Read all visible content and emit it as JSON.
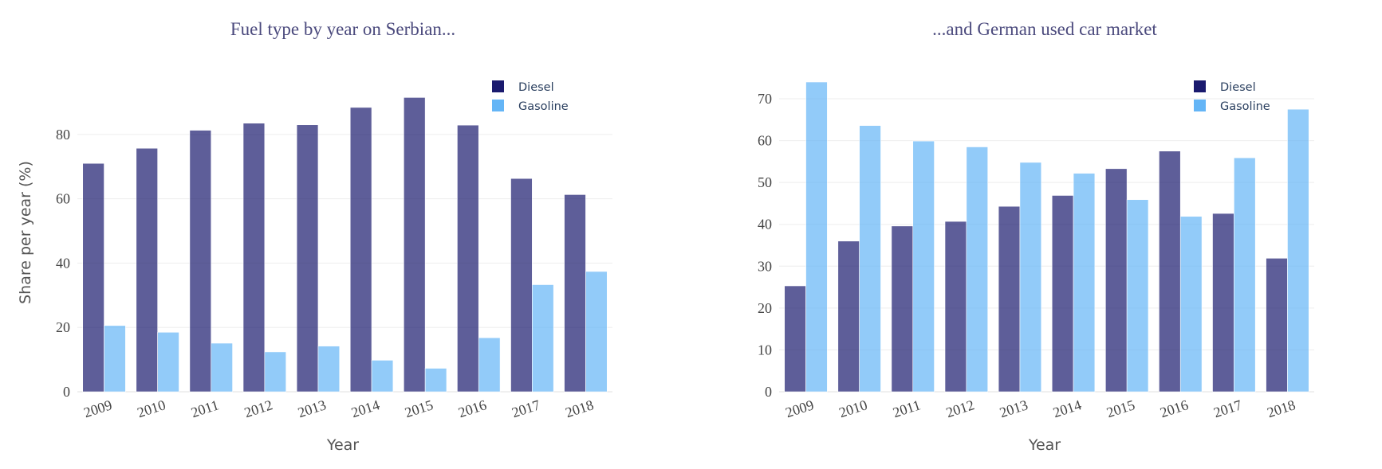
{
  "chart_data": [
    {
      "type": "bar",
      "title": "Fuel type by year on Serbian...",
      "xlabel": "Year",
      "ylabel": "Share per year (%)",
      "categories": [
        "2009",
        "2010",
        "2011",
        "2012",
        "2013",
        "2014",
        "2015",
        "2016",
        "2017",
        "2018"
      ],
      "series": [
        {
          "name": "Diesel",
          "color": "#1a1a6e",
          "values": [
            71,
            75.7,
            81.3,
            83.5,
            83,
            88.4,
            91.5,
            82.9,
            66.3,
            61.3
          ]
        },
        {
          "name": "Gasoline",
          "color": "#64b5f6",
          "values": [
            20.6,
            18.5,
            15.1,
            12.4,
            14.2,
            9.8,
            7.3,
            16.8,
            33.3,
            37.4
          ]
        }
      ],
      "yticks": [
        0,
        20,
        40,
        60,
        80
      ],
      "ylim": [
        0,
        96.3
      ],
      "grid": true,
      "legend_position": "top-right"
    },
    {
      "type": "bar",
      "title": "...and German used car market",
      "xlabel": "Year",
      "ylabel": "",
      "categories": [
        "2009",
        "2010",
        "2011",
        "2012",
        "2013",
        "2014",
        "2015",
        "2016",
        "2017",
        "2018"
      ],
      "series": [
        {
          "name": "Diesel",
          "color": "#1a1a6e",
          "values": [
            25.3,
            36,
            39.6,
            40.7,
            44.3,
            46.9,
            53.3,
            57.5,
            42.6,
            31.9
          ]
        },
        {
          "name": "Gasoline",
          "color": "#64b5f6",
          "values": [
            74,
            63.6,
            59.9,
            58.5,
            54.8,
            52.2,
            45.9,
            41.9,
            55.9,
            67.5
          ]
        }
      ],
      "yticks": [
        0,
        10,
        20,
        30,
        40,
        50,
        60,
        70
      ],
      "ylim": [
        0,
        74
      ],
      "grid": true,
      "legend_position": "top-right"
    }
  ]
}
